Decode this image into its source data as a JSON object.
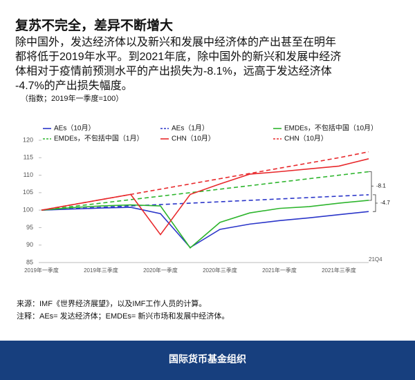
{
  "chart_data": {
    "type": "line",
    "title": "复苏不完全，差异不断增大",
    "subtitle": [
      "除中国外，发达经济体以及新兴和发展中经济体的产出甚至在明年",
      "都将低于2019年水平。到2021年底，除中国外的新兴和发展中经济",
      "体相对于疫情前预测水平的产出损失为-8.1%，远高于发达经济体",
      "-4.7%的产出损失幅度。"
    ],
    "note": "（指数；2019年一季度=100）",
    "categories": [
      "2019年一季度",
      null,
      "2019年三季度",
      null,
      "2020年一季度",
      null,
      "2020年三季度",
      null,
      "2021年一季度",
      null,
      "2021年三季度",
      null
    ],
    "series": [
      {
        "name": "AEs（10月）",
        "color": "#2a35c9",
        "style": "solid",
        "values": [
          100,
          100.3,
          100.6,
          100.8,
          99,
          89.3,
          94.5,
          96,
          97,
          97.8,
          98.7,
          99.6
        ]
      },
      {
        "name": "AEs（1月）",
        "color": "#2a35c9",
        "style": "dashed",
        "values": [
          100,
          100.4,
          100.8,
          101.2,
          101.6,
          102,
          102.4,
          102.8,
          103.2,
          103.6,
          104,
          104.4
        ]
      },
      {
        "name": "EMDEs，不包括中国（10月）",
        "color": "#2db52d",
        "style": "solid",
        "values": [
          100,
          100.7,
          101.2,
          101.5,
          101.2,
          89.2,
          96.5,
          99.2,
          100.5,
          101,
          102,
          102.8
        ]
      },
      {
        "name": "EMDEs，不包括中国（1月）",
        "color": "#2db52d",
        "style": "dashed",
        "values": [
          100,
          101,
          102,
          103,
          104,
          105,
          106,
          107,
          108,
          109,
          110,
          111
        ]
      },
      {
        "name": "CHN（10月）",
        "color": "#e8282b",
        "style": "solid",
        "values": [
          100,
          101.5,
          103,
          104.5,
          93,
          104.5,
          107.5,
          110.3,
          111,
          111.8,
          112.6,
          114.7
        ]
      },
      {
        "name": "CHN（10月）",
        "color": "#e8282b",
        "style": "dashed",
        "values": [
          100,
          101.5,
          103,
          104.5,
          106,
          107.5,
          109,
          110.5,
          112,
          113.5,
          115,
          116.7
        ]
      }
    ],
    "ylim": [
      85,
      120
    ],
    "yticks": [
      85,
      90,
      95,
      100,
      105,
      110,
      115,
      120
    ],
    "grid": false,
    "annotations": [
      "-8.1",
      "-4.7",
      "21Q4"
    ],
    "source": "来源：IMF《世界经济展望》，以及IMF工作人员的计算。",
    "footnote": "注释：AEs= 发达经济体；EMDEs= 新兴市场和发展中经济体。",
    "footer": "国际货币基金组织"
  }
}
